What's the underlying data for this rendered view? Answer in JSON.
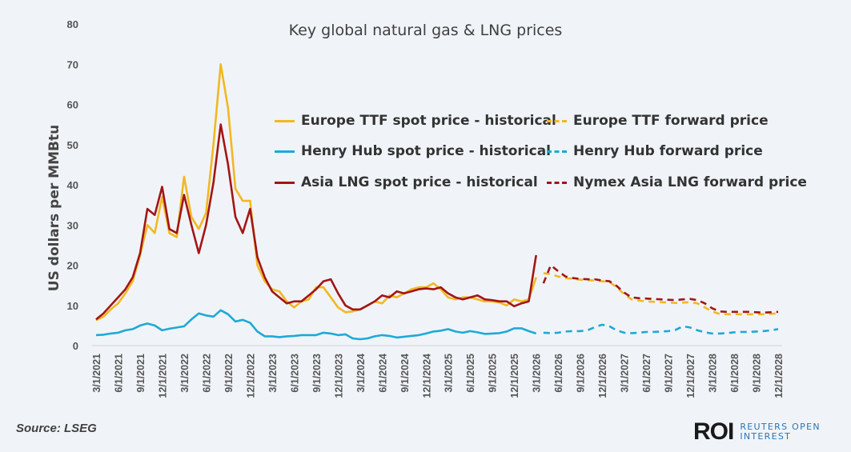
{
  "chart_data": {
    "type": "line",
    "title": "Key global natural gas & LNG prices",
    "ylabel": "US dollars per MMBtu",
    "xlabel": "",
    "ylim": [
      0,
      80
    ],
    "y_ticks": [
      "0",
      "10",
      "20",
      "30",
      "40",
      "50",
      "60",
      "70",
      "80"
    ],
    "x_range": [
      "3/1/2021",
      "12/1/2028"
    ],
    "x_tick_labels": [
      "3/1/2021",
      "6/1/2021",
      "9/1/2021",
      "12/1/2021",
      "3/1/2022",
      "6/1/2022",
      "9/1/2022",
      "12/1/2022",
      "3/1/2023",
      "6/1/2023",
      "9/1/2023",
      "12/1/2023",
      "3/1/2024",
      "6/1/2024",
      "9/1/2024",
      "12/1/2024",
      "3/1/2025",
      "6/1/2025",
      "9/1/2025",
      "12/1/2025",
      "3/1/2026",
      "6/1/2026",
      "9/1/2026",
      "12/1/2026",
      "3/1/2027",
      "6/1/2027",
      "9/1/2027",
      "12/1/2027",
      "3/1/2028",
      "6/1/2028",
      "9/1/2028",
      "12/1/2028"
    ],
    "frequency": "monthly",
    "grid": false,
    "legend_placement": "top-center",
    "series": [
      {
        "name": "Europe TTF spot price - historical",
        "color": "#F2B822",
        "style": "solid",
        "x_start": "3/1/2021",
        "x_end": "3/1/2026",
        "values": [
          6.3,
          7.2,
          9,
          10.5,
          13,
          16,
          22.5,
          30,
          28,
          37,
          28,
          27,
          42,
          32,
          29,
          33,
          50,
          70,
          59,
          39,
          36,
          36,
          20,
          16,
          14,
          13.5,
          11,
          9.5,
          11,
          11.5,
          14.5,
          14.5,
          12,
          9.5,
          8.3,
          8.5,
          9,
          10,
          11,
          10.5,
          12.5,
          12,
          13,
          14,
          14.5,
          14.5,
          15.5,
          14,
          12,
          11.5,
          12,
          12,
          11.5,
          11,
          11,
          10.7,
          10,
          11.5,
          11,
          11.5,
          17
        ]
      },
      {
        "name": "Henry Hub spot price - historical",
        "color": "#1FA9D6",
        "style": "solid",
        "x_start": "3/1/2021",
        "x_end": "3/1/2026",
        "values": [
          2.6,
          2.7,
          3,
          3.2,
          3.8,
          4.1,
          5,
          5.5,
          5,
          3.8,
          4.2,
          4.5,
          4.8,
          6.5,
          8,
          7.5,
          7.2,
          8.8,
          7.8,
          6,
          6.4,
          5.7,
          3.5,
          2.3,
          2.3,
          2.1,
          2.3,
          2.4,
          2.6,
          2.6,
          2.6,
          3.2,
          3,
          2.6,
          2.8,
          1.8,
          1.6,
          1.8,
          2.3,
          2.6,
          2.4,
          2,
          2.2,
          2.4,
          2.6,
          3,
          3.5,
          3.7,
          4.1,
          3.5,
          3.2,
          3.6,
          3.3,
          2.9,
          3,
          3.1,
          3.5,
          4.3,
          4.3,
          3.6,
          3
        ]
      },
      {
        "name": "Asia LNG spot price - historical",
        "color": "#A31515",
        "style": "solid",
        "x_start": "3/1/2021",
        "x_end": "3/1/2026",
        "values": [
          6.5,
          8,
          10,
          12,
          14,
          17,
          23,
          34,
          32.5,
          39.5,
          29,
          28,
          37.5,
          30,
          23,
          30,
          40.5,
          55,
          45,
          32,
          28,
          34,
          22,
          17,
          13.5,
          12,
          10.5,
          11,
          11,
          12.5,
          14,
          16,
          16.5,
          13,
          10,
          9,
          9,
          10,
          11,
          12.5,
          12,
          13.5,
          13,
          13.5,
          14,
          14.2,
          14,
          14.5,
          13,
          12,
          11.5,
          12,
          12.5,
          11.5,
          11.3,
          11,
          11,
          9.8,
          10.5,
          11,
          22.5
        ]
      },
      {
        "name": "Europe TTF forward price",
        "color": "#F2B822",
        "style": "dashed",
        "x_start": "4/1/2026",
        "x_end": "12/1/2028",
        "values": [
          18,
          17.8,
          17.2,
          16.8,
          16.6,
          16.4,
          16.3,
          16.2,
          16,
          15.8,
          14.5,
          12.8,
          11.5,
          11.2,
          11,
          10.9,
          10.8,
          10.7,
          10.6,
          10.7,
          10.8,
          10.5,
          9.5,
          8.5,
          7.9,
          7.8,
          7.8,
          7.8,
          7.8,
          7.8,
          7.8,
          7.9,
          8
        ]
      },
      {
        "name": "Henry Hub forward price",
        "color": "#1FA9D6",
        "style": "dashed",
        "x_start": "4/1/2026",
        "x_end": "12/1/2028",
        "values": [
          3.2,
          3.1,
          3.2,
          3.5,
          3.6,
          3.6,
          3.8,
          4.6,
          5.2,
          4.8,
          3.8,
          3.2,
          3.1,
          3.2,
          3.4,
          3.4,
          3.5,
          3.6,
          3.9,
          4.8,
          4.5,
          3.8,
          3.3,
          3,
          3,
          3.1,
          3.3,
          3.4,
          3.4,
          3.5,
          3.6,
          3.8,
          4.1
        ]
      },
      {
        "name": "Nymex Asia LNG forward price",
        "color": "#A31515",
        "style": "dashed",
        "x_start": "4/1/2026",
        "x_end": "12/1/2028",
        "values": [
          15.5,
          20,
          18.5,
          17.2,
          16.8,
          16.6,
          16.5,
          16.5,
          16.2,
          16,
          14.8,
          13.2,
          12,
          11.8,
          11.7,
          11.6,
          11.5,
          11.4,
          11.3,
          11.5,
          11.6,
          11.3,
          10.5,
          9.3,
          8.5,
          8.4,
          8.4,
          8.4,
          8.4,
          8.3,
          8.2,
          8.3,
          8.4
        ]
      }
    ]
  },
  "footer": {
    "source": "Source:  LSEG",
    "logo_mark": "ROI",
    "logo_line1": "REUTERS OPEN",
    "logo_line2": "INTEREST"
  }
}
